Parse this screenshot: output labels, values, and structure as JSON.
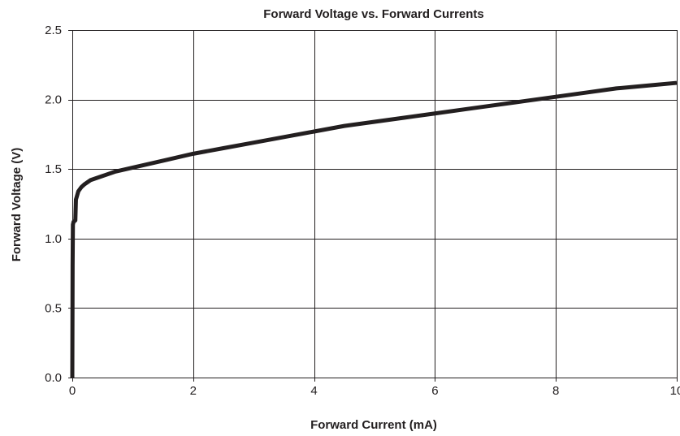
{
  "chart_data": {
    "type": "line",
    "title": "Forward Voltage  vs. Forward Currents",
    "xlabel": "Forward Current (mA)",
    "ylabel": "Forward Voltage (V)",
    "xlim": [
      0,
      10
    ],
    "ylim": [
      0,
      2.5
    ],
    "x_ticks": [
      0,
      2,
      4,
      6,
      8,
      10
    ],
    "x_tick_labels": [
      "0",
      "2",
      "4",
      "6",
      "8",
      "10"
    ],
    "y_ticks": [
      0.0,
      0.5,
      1.0,
      1.5,
      2.0,
      2.5
    ],
    "y_tick_labels": [
      "0.0",
      "0.5",
      "1.0",
      "1.5",
      "2.0",
      "2.5"
    ],
    "grid": true,
    "legend": "none",
    "series": [
      {
        "color": "#231f20",
        "x": [
          0,
          0.005,
          0.01,
          0.02,
          0.05,
          0.06,
          0.08,
          0.1,
          0.15,
          0.2,
          0.3,
          0.5,
          0.7,
          1.0,
          1.5,
          2.0,
          2.5,
          3.0,
          3.5,
          4.0,
          4.5,
          5.0,
          5.5,
          6.0,
          6.5,
          7.0,
          7.5,
          8.0,
          8.5,
          9.0,
          9.5,
          10.0
        ],
        "values": [
          0.0,
          0.8,
          1.1,
          1.12,
          1.13,
          1.28,
          1.31,
          1.34,
          1.37,
          1.39,
          1.42,
          1.45,
          1.48,
          1.51,
          1.56,
          1.61,
          1.65,
          1.69,
          1.73,
          1.77,
          1.81,
          1.84,
          1.87,
          1.9,
          1.93,
          1.96,
          1.99,
          2.02,
          2.05,
          2.08,
          2.1,
          2.12
        ]
      }
    ]
  }
}
